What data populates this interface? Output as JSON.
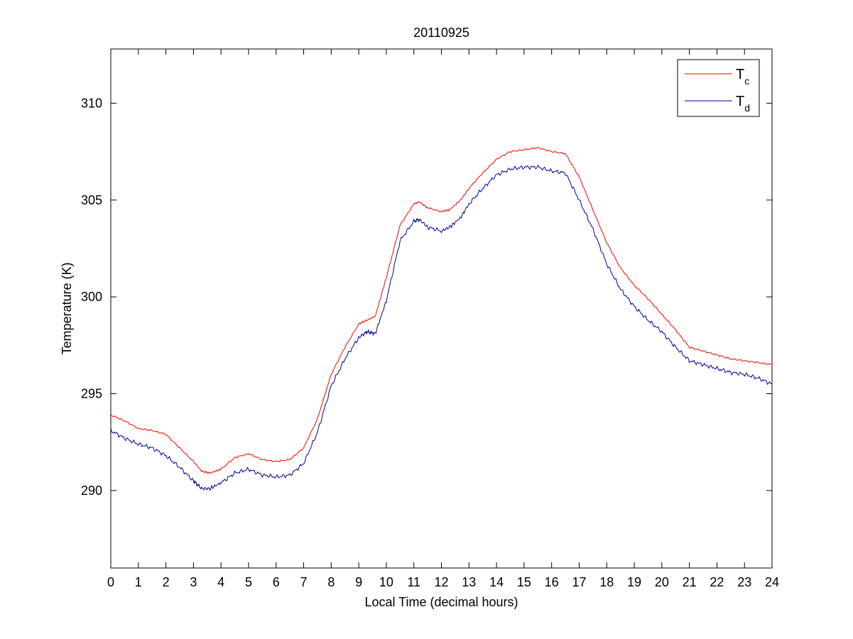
{
  "chart_data": {
    "type": "line",
    "title": "20110925",
    "xlabel": "Local Time (decimal hours)",
    "ylabel": "Temperature (K)",
    "xlim": [
      0,
      24
    ],
    "ylim": [
      286,
      312.8
    ],
    "xticks": [
      "0",
      "1",
      "2",
      "3",
      "4",
      "5",
      "6",
      "7",
      "8",
      "9",
      "10",
      "11",
      "12",
      "13",
      "14",
      "15",
      "16",
      "17",
      "18",
      "19",
      "20",
      "21",
      "22",
      "23",
      "24"
    ],
    "yticks": [
      "290",
      "295",
      "300",
      "305",
      "310"
    ],
    "grid": false,
    "legend_position": "top-right",
    "series": [
      {
        "name_main": "T",
        "name_sub": "c",
        "color": "#ff0000",
        "x": [
          0,
          0.5,
          1,
          1.5,
          2,
          2.5,
          3,
          3.3,
          3.6,
          4,
          4.5,
          5,
          5.5,
          6,
          6.5,
          7,
          7.5,
          8,
          8.5,
          9,
          9.3,
          9.6,
          10,
          10.5,
          11,
          11.2,
          11.5,
          12,
          12.3,
          12.7,
          13,
          13.5,
          14,
          14.5,
          15,
          15.5,
          16,
          16.5,
          17,
          17.5,
          18,
          18.5,
          19,
          19.5,
          20,
          20.5,
          21,
          21.5,
          22,
          22.5,
          23,
          23.5,
          24
        ],
        "y": [
          293.9,
          293.6,
          293.2,
          293.1,
          292.9,
          292.2,
          291.5,
          291.0,
          290.9,
          291.1,
          291.7,
          291.9,
          291.6,
          291.5,
          291.6,
          292.2,
          293.7,
          296.0,
          297.4,
          298.6,
          298.8,
          299.0,
          301.0,
          303.7,
          304.8,
          304.9,
          304.6,
          304.4,
          304.5,
          305.0,
          305.6,
          306.4,
          307.1,
          307.5,
          307.6,
          307.7,
          307.5,
          307.4,
          306.2,
          304.5,
          302.8,
          301.5,
          300.6,
          299.9,
          299.1,
          298.3,
          297.4,
          297.2,
          297.0,
          296.8,
          296.7,
          296.6,
          296.5
        ]
      },
      {
        "name_main": "T",
        "name_sub": "d",
        "color": "#0000a0",
        "x": [
          0,
          0.5,
          1,
          1.5,
          2,
          2.5,
          3,
          3.3,
          3.6,
          4,
          4.5,
          5,
          5.5,
          6,
          6.5,
          7,
          7.5,
          8,
          8.5,
          9,
          9.3,
          9.6,
          10,
          10.5,
          11,
          11.2,
          11.5,
          12,
          12.3,
          12.7,
          13,
          13.5,
          14,
          14.5,
          15,
          15.5,
          16,
          16.5,
          17,
          17.5,
          18,
          18.5,
          19,
          19.5,
          20,
          20.5,
          21,
          21.5,
          22,
          22.5,
          23,
          23.5,
          24
        ],
        "y": [
          293.1,
          292.7,
          292.4,
          292.2,
          291.8,
          291.2,
          290.5,
          290.1,
          290.1,
          290.4,
          290.9,
          291.1,
          290.8,
          290.7,
          290.8,
          291.4,
          293.0,
          295.4,
          296.8,
          297.9,
          298.2,
          298.1,
          299.8,
          302.9,
          303.9,
          304.0,
          303.6,
          303.4,
          303.6,
          304.1,
          304.8,
          305.6,
          306.3,
          306.6,
          306.7,
          306.7,
          306.5,
          306.4,
          305.0,
          303.5,
          301.7,
          300.4,
          299.5,
          298.8,
          298.2,
          297.4,
          296.7,
          296.5,
          296.3,
          296.1,
          296.0,
          295.8,
          295.5
        ]
      }
    ]
  }
}
